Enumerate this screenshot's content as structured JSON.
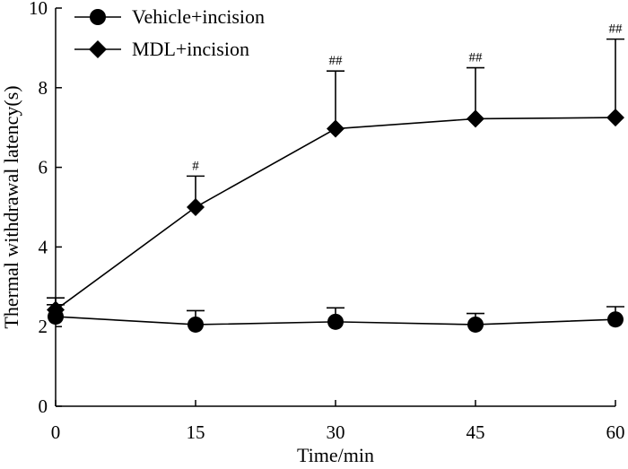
{
  "chart_data": {
    "type": "line",
    "x": [
      0,
      15,
      30,
      45,
      60
    ],
    "xticks": [
      "0",
      "15",
      "30",
      "45",
      "60"
    ],
    "yticks": [
      "0",
      "2",
      "4",
      "6",
      "8",
      "10"
    ],
    "xlim": [
      0,
      60
    ],
    "ylim": [
      0,
      10
    ],
    "xlabel": "Time/min",
    "ylabel": "Thermal withdrawal latency(s)",
    "legend_position": "top-left",
    "series": [
      {
        "name": "Vehicle+incision",
        "marker": "circle",
        "values": [
          2.25,
          2.05,
          2.12,
          2.05,
          2.18
        ],
        "errors": [
          0.3,
          0.35,
          0.35,
          0.28,
          0.32
        ],
        "annotations": [
          "",
          "",
          "",
          "",
          ""
        ]
      },
      {
        "name": "MDL+incision",
        "marker": "diamond",
        "values": [
          2.42,
          5.0,
          6.97,
          7.22,
          7.25
        ],
        "errors": [
          0.3,
          0.78,
          1.45,
          1.28,
          1.97
        ],
        "annotations": [
          "",
          "#",
          "##",
          "##",
          "##"
        ]
      }
    ],
    "colors": {
      "ink": "#000000",
      "background": "#ffffff"
    }
  }
}
